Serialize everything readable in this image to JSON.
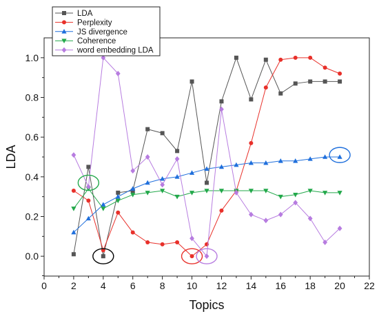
{
  "chart_data": {
    "type": "line",
    "xlabel": "Topics",
    "ylabel": "LDA",
    "xlim": [
      0,
      22
    ],
    "ylim": [
      -0.1,
      1.1
    ],
    "xticks": [
      0,
      2,
      4,
      6,
      8,
      10,
      12,
      14,
      16,
      18,
      20,
      22
    ],
    "xtick_labels": [
      "0",
      "2",
      "4",
      "6",
      "8",
      "10",
      "12",
      "14",
      "16",
      "18",
      "20",
      "22"
    ],
    "yticks": [
      0.0,
      0.2,
      0.4,
      0.6,
      0.8,
      1.0
    ],
    "ytick_labels": [
      "0.0",
      "0.2",
      "0.4",
      "0.6",
      "0.8",
      "1.0"
    ],
    "grid": false,
    "legend_position": "top-left",
    "x": [
      2,
      3,
      4,
      5,
      6,
      7,
      8,
      9,
      10,
      11,
      12,
      13,
      14,
      15,
      16,
      17,
      18,
      19,
      20
    ],
    "series": [
      {
        "name": "LDA",
        "color": "#555555",
        "marker": "square",
        "values": [
          0.01,
          0.45,
          0.0,
          0.32,
          0.33,
          0.64,
          0.62,
          0.53,
          0.88,
          0.37,
          0.78,
          1.0,
          0.79,
          0.99,
          0.82,
          0.87,
          0.88,
          0.88,
          0.88
        ]
      },
      {
        "name": "Perplexity",
        "color": "#e8302a",
        "marker": "circle",
        "values": [
          0.33,
          0.28,
          0.03,
          0.22,
          0.12,
          0.07,
          0.06,
          0.07,
          0.0,
          0.06,
          0.23,
          0.33,
          0.57,
          0.85,
          0.99,
          1.0,
          1.0,
          0.95,
          0.92
        ]
      },
      {
        "name": "JS divergence",
        "color": "#1f6fdc",
        "marker": "triangle-up",
        "values": [
          0.12,
          0.19,
          0.26,
          0.3,
          0.34,
          0.37,
          0.39,
          0.4,
          0.42,
          0.44,
          0.45,
          0.46,
          0.47,
          0.47,
          0.48,
          0.48,
          0.49,
          0.5,
          0.5
        ]
      },
      {
        "name": "Coherence",
        "color": "#22a84a",
        "marker": "triangle-down",
        "values": [
          0.24,
          0.34,
          0.24,
          0.28,
          0.31,
          0.32,
          0.33,
          0.3,
          0.32,
          0.33,
          0.33,
          0.33,
          0.33,
          0.33,
          0.3,
          0.31,
          0.33,
          0.32,
          0.32
        ]
      },
      {
        "name": "word embedding LDA",
        "color": "#b77ce0",
        "marker": "diamond",
        "values": [
          0.51,
          0.35,
          1.0,
          0.92,
          0.43,
          0.5,
          0.36,
          0.49,
          0.09,
          0.0,
          0.74,
          0.32,
          0.21,
          0.18,
          0.21,
          0.27,
          0.19,
          0.07,
          0.14
        ]
      }
    ],
    "annotations": [
      {
        "shape": "ellipse",
        "color": "#000000",
        "x": 4,
        "y": 0.0
      },
      {
        "shape": "ellipse",
        "color": "#e8302a",
        "x": 10,
        "y": 0.0
      },
      {
        "shape": "ellipse",
        "color": "#b77ce0",
        "x": 11,
        "y": 0.0
      },
      {
        "shape": "ellipse",
        "color": "#22a84a",
        "x": 3,
        "y": 0.37
      },
      {
        "shape": "ellipse",
        "color": "#1f6fdc",
        "x": 20,
        "y": 0.51
      }
    ]
  }
}
